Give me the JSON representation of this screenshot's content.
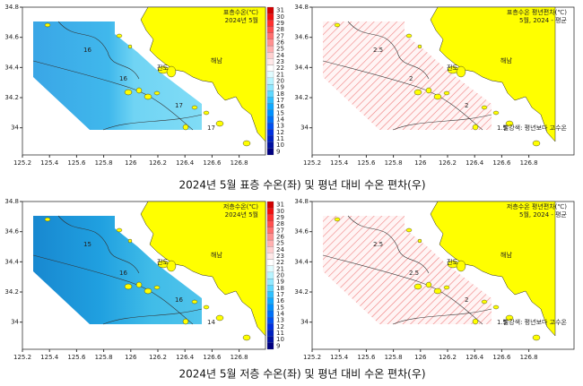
{
  "axes": {
    "xlim": [
      125.2,
      127.0
    ],
    "ylim": [
      33.82,
      34.8
    ],
    "xticks": [
      125.2,
      125.4,
      125.6,
      125.8,
      126,
      126.2,
      126.4,
      126.6,
      126.8
    ],
    "yticks": [
      34,
      34.2,
      34.4,
      34.6,
      34.8
    ]
  },
  "colorbar": {
    "ticks": [
      9,
      10,
      11,
      12,
      13,
      14,
      15,
      16,
      17,
      18,
      19,
      20,
      21,
      22,
      23,
      24,
      25,
      26,
      27,
      28,
      29,
      30,
      31
    ],
    "colors": [
      "#000080",
      "#0010a0",
      "#0020c0",
      "#0030e0",
      "#0050f0",
      "#0070f8",
      "#0090ff",
      "#10a8ff",
      "#30c0ff",
      "#60d8ff",
      "#90e8ff",
      "#b8f4ff",
      "#e0fcff",
      "#ffffff",
      "#ffe8e8",
      "#ffd0d0",
      "#ffb0b0",
      "#ff9090",
      "#ff7070",
      "#ff5050",
      "#ff3030",
      "#f01010",
      "#d00000"
    ]
  },
  "panels": [
    {
      "kind": "temperature",
      "title": "표층수온(℃)",
      "subtitle": "2024년 5월",
      "places": [
        "진도",
        "해남"
      ],
      "contour_labels": [
        "16",
        "16",
        "17",
        "17"
      ]
    },
    {
      "kind": "anomaly",
      "title": "표층수온 평년편차(℃)",
      "subtitle": "5월, 2024 - 평균",
      "places": [
        "진도",
        "해남"
      ],
      "contour_labels": [
        "2.5",
        "2",
        "2",
        "1.5"
      ],
      "annotation": "빨강색: 평년보다 고수온"
    },
    {
      "kind": "temperature",
      "title": "저층수온(℃)",
      "subtitle": "2024년 5월",
      "places": [
        "진도",
        "해남"
      ],
      "contour_labels": [
        "15",
        "16",
        "16",
        "14"
      ]
    },
    {
      "kind": "anomaly",
      "title": "저층수온 평년편차(℃)",
      "subtitle": "5월, 2024 - 평균",
      "places": [
        "진도",
        "해남"
      ],
      "contour_labels": [
        "2.5",
        "2.5",
        "2",
        "1.5"
      ],
      "annotation": "빨강색: 평년보다 고수온"
    }
  ],
  "captions": [
    "2024년 5월 표층 수온(좌) 및 평년 대비 수온 편차(우)",
    "2024년 5월 저층 수온(좌) 및 평년 대비 수온 편차(우)"
  ]
}
